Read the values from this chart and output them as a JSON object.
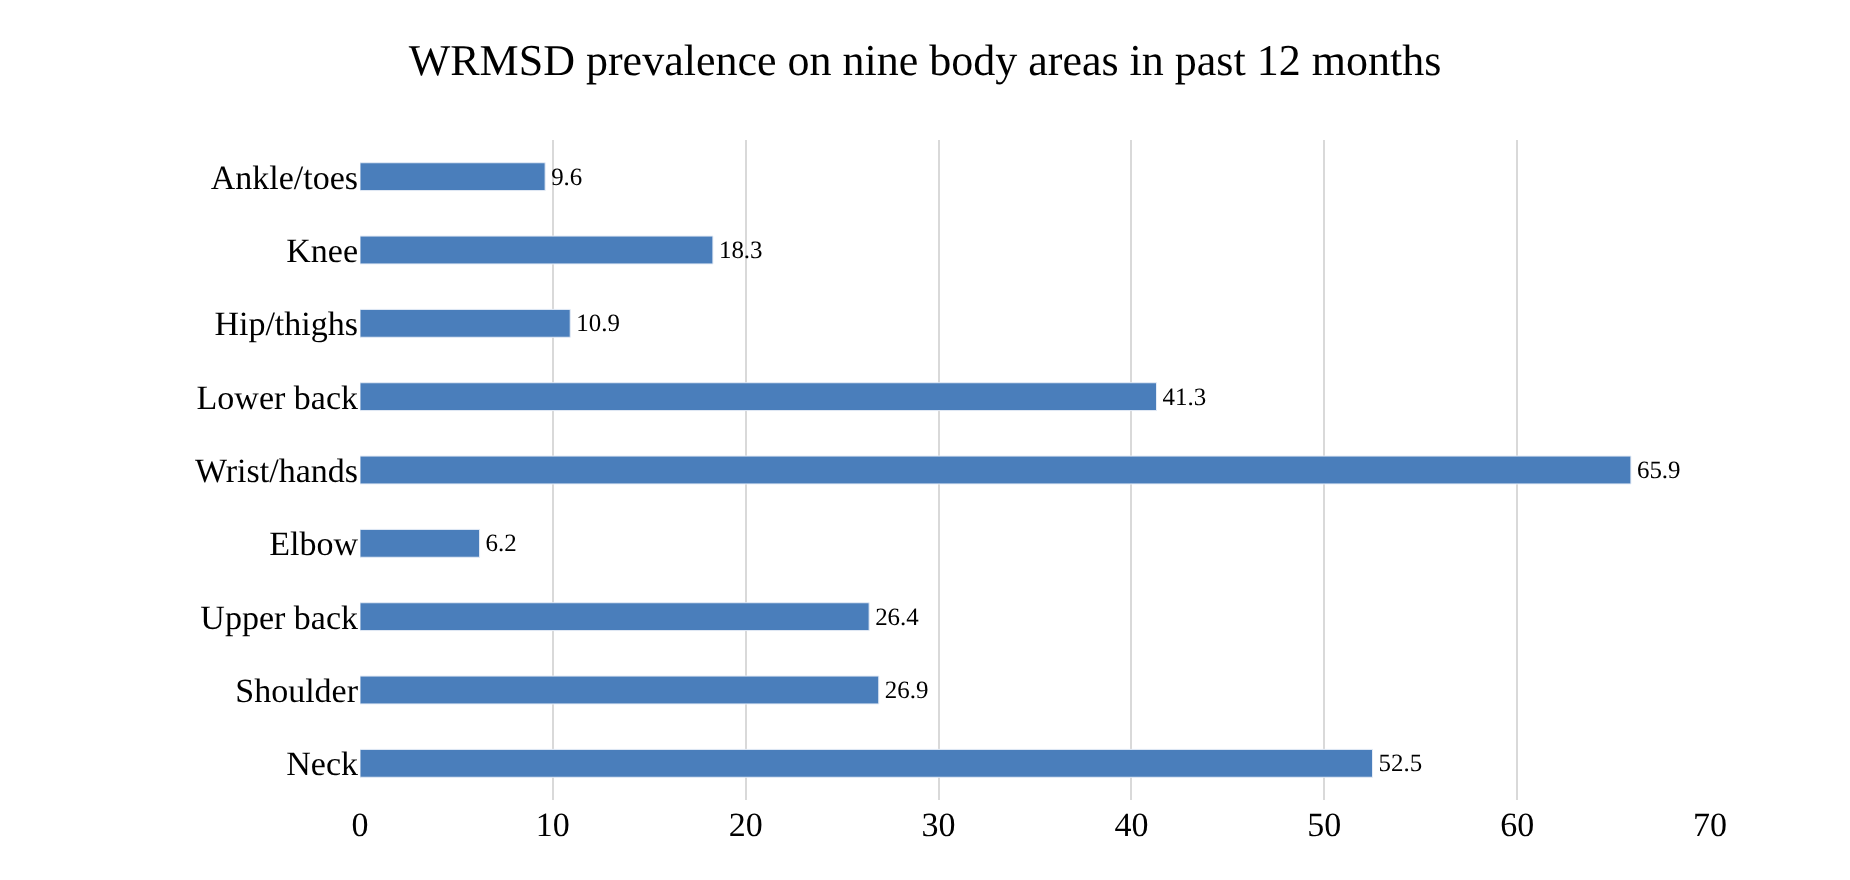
{
  "chart_data": {
    "type": "bar",
    "orientation": "horizontal",
    "title": "WRMSD prevalence on nine body areas in past 12 months",
    "categories": [
      "Ankle/toes",
      "Knee",
      "Hip/thighs",
      "Lower back",
      "Wrist/hands",
      "Elbow",
      "Upper back",
      "Shoulder",
      "Neck"
    ],
    "values": [
      9.6,
      18.3,
      10.9,
      41.3,
      65.9,
      6.2,
      26.4,
      26.9,
      52.5
    ],
    "color": "#4a7ebb",
    "xlim": [
      0,
      70
    ],
    "xticks": [
      0,
      10,
      20,
      30,
      40,
      50,
      60,
      70
    ],
    "grid": "x",
    "data_labels": true
  }
}
